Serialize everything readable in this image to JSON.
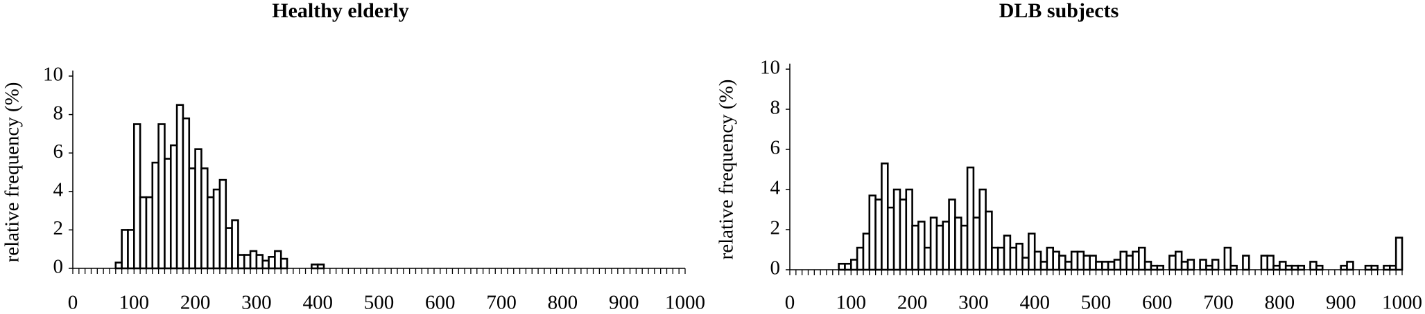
{
  "chart_data": [
    {
      "type": "histogram",
      "title": "Healthy elderly",
      "ylabel": "relative frequency (%)",
      "bins": [
        0,
        10,
        20,
        30,
        40,
        50,
        60,
        70,
        80,
        90,
        100,
        110,
        120,
        130,
        140,
        150,
        160,
        170,
        180,
        190,
        200,
        210,
        220,
        230,
        240,
        250,
        260,
        270,
        280,
        290,
        300,
        310,
        320,
        330,
        340,
        350,
        360,
        370,
        380,
        390,
        400,
        410,
        420,
        430,
        440,
        450,
        460,
        470,
        480,
        490,
        500,
        510,
        520,
        530,
        540,
        550,
        560,
        570,
        580,
        590,
        600,
        610,
        620,
        630,
        640,
        650,
        660,
        670,
        680,
        690,
        700,
        710,
        720,
        730,
        740,
        750,
        760,
        770,
        780,
        790,
        800,
        810,
        820,
        830,
        840,
        850,
        860,
        870,
        880,
        890,
        900,
        910,
        920,
        930,
        940,
        950,
        960,
        970,
        980,
        990,
        1000
      ],
      "values": [
        0,
        0,
        0,
        0,
        0,
        0,
        0,
        0.3,
        2.0,
        2.0,
        7.5,
        3.7,
        3.7,
        5.5,
        7.5,
        5.7,
        6.4,
        8.5,
        7.8,
        5.2,
        6.2,
        5.2,
        3.7,
        4.1,
        4.6,
        2.1,
        2.5,
        0.7,
        0.7,
        0.9,
        0.7,
        0.4,
        0.6,
        0.9,
        0.5,
        0,
        0,
        0,
        0,
        0.2,
        0.2,
        0,
        0,
        0,
        0,
        0,
        0,
        0,
        0,
        0,
        0,
        0,
        0,
        0,
        0,
        0,
        0,
        0,
        0,
        0,
        0,
        0,
        0,
        0,
        0,
        0,
        0,
        0,
        0,
        0,
        0,
        0,
        0,
        0,
        0,
        0,
        0,
        0,
        0,
        0,
        0,
        0,
        0,
        0,
        0,
        0,
        0,
        0,
        0,
        0,
        0,
        0,
        0,
        0,
        0,
        0,
        0,
        0,
        0,
        0
      ],
      "color": "#ffffff",
      "edgecolor": "#000000",
      "xlim": [
        0,
        1000
      ],
      "xticks": [
        0,
        100,
        200,
        300,
        400,
        500,
        600,
        700,
        800,
        900,
        1000
      ],
      "ylim": [
        0,
        10
      ],
      "yticks": [
        0,
        2,
        4,
        6,
        8,
        10
      ]
    },
    {
      "type": "histogram",
      "title": "DLB subjects",
      "ylabel": "relative frequency (%)",
      "bins": [
        0,
        10,
        20,
        30,
        40,
        50,
        60,
        70,
        80,
        90,
        100,
        110,
        120,
        130,
        140,
        150,
        160,
        170,
        180,
        190,
        200,
        210,
        220,
        230,
        240,
        250,
        260,
        270,
        280,
        290,
        300,
        310,
        320,
        330,
        340,
        350,
        360,
        370,
        380,
        390,
        400,
        410,
        420,
        430,
        440,
        450,
        460,
        470,
        480,
        490,
        500,
        510,
        520,
        530,
        540,
        550,
        560,
        570,
        580,
        590,
        600,
        610,
        620,
        630,
        640,
        650,
        660,
        670,
        680,
        690,
        700,
        710,
        720,
        730,
        740,
        750,
        760,
        770,
        780,
        790,
        800,
        810,
        820,
        830,
        840,
        850,
        860,
        870,
        880,
        890,
        900,
        910,
        920,
        930,
        940,
        950,
        960,
        970,
        980,
        990,
        1000
      ],
      "values": [
        0,
        0,
        0,
        0,
        0,
        0,
        0,
        0,
        0.3,
        0.3,
        0.5,
        1.1,
        1.8,
        3.7,
        3.5,
        5.3,
        3.1,
        4.0,
        3.5,
        4.0,
        2.2,
        2.4,
        1.1,
        2.6,
        2.2,
        2.4,
        3.5,
        2.6,
        2.2,
        5.1,
        2.6,
        4.0,
        2.9,
        1.1,
        1.1,
        1.7,
        1.1,
        1.3,
        0.6,
        1.8,
        0.9,
        0.4,
        1.1,
        0.9,
        0.7,
        0.4,
        0.9,
        0.9,
        0.7,
        0.7,
        0.4,
        0.4,
        0.4,
        0.5,
        0.9,
        0.7,
        0.9,
        1.1,
        0.4,
        0.2,
        0.2,
        0,
        0.7,
        0.9,
        0.4,
        0.5,
        0,
        0.5,
        0.2,
        0.5,
        0,
        1.1,
        0.2,
        0,
        0.7,
        0,
        0,
        0.7,
        0.7,
        0.2,
        0.4,
        0.2,
        0.2,
        0.2,
        0,
        0.4,
        0.2,
        0,
        0,
        0,
        0.2,
        0.4,
        0,
        0,
        0.2,
        0.2,
        0,
        0.2,
        0.2,
        1.6
      ],
      "color": "#ffffff",
      "edgecolor": "#000000",
      "xlim": [
        0,
        1000
      ],
      "xticks": [
        0,
        100,
        200,
        300,
        400,
        500,
        600,
        700,
        800,
        900,
        1000
      ],
      "ylim": [
        0,
        10
      ],
      "yticks": [
        0,
        2,
        4,
        6,
        8,
        10
      ]
    }
  ]
}
